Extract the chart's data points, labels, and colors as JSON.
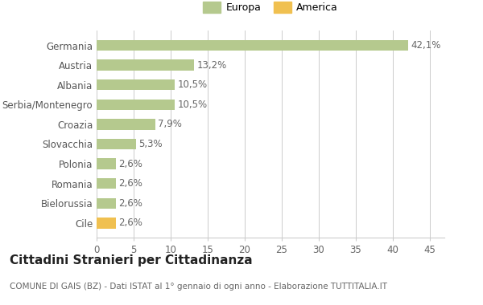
{
  "categories": [
    "Cile",
    "Bielorussia",
    "Romania",
    "Polonia",
    "Slovacchia",
    "Croazia",
    "Serbia/Montenegro",
    "Albania",
    "Austria",
    "Germania"
  ],
  "values": [
    2.6,
    2.6,
    2.6,
    2.6,
    5.3,
    7.9,
    10.5,
    10.5,
    13.2,
    42.1
  ],
  "labels": [
    "2,6%",
    "2,6%",
    "2,6%",
    "2,6%",
    "5,3%",
    "7,9%",
    "10,5%",
    "10,5%",
    "13,2%",
    "42,1%"
  ],
  "colors": [
    "#f0c050",
    "#b5c98e",
    "#b5c98e",
    "#b5c98e",
    "#b5c98e",
    "#b5c98e",
    "#b5c98e",
    "#b5c98e",
    "#b5c98e",
    "#b5c98e"
  ],
  "legend_items": [
    {
      "label": "Europa",
      "color": "#b5c98e"
    },
    {
      "label": "America",
      "color": "#f0c050"
    }
  ],
  "title": "Cittadini Stranieri per Cittadinanza",
  "subtitle": "COMUNE DI GAIS (BZ) - Dati ISTAT al 1° gennaio di ogni anno - Elaborazione TUTTITALIA.IT",
  "xlim": [
    0,
    47
  ],
  "xticks": [
    0,
    5,
    10,
    15,
    20,
    25,
    30,
    35,
    40,
    45
  ],
  "background_color": "#ffffff",
  "bar_height": 0.55,
  "grid_color": "#cccccc",
  "label_fontsize": 8.5,
  "axis_fontsize": 8.5,
  "title_fontsize": 11,
  "subtitle_fontsize": 7.5
}
